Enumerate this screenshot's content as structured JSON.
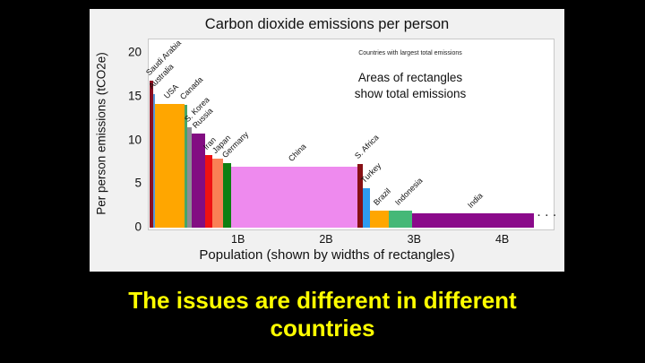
{
  "slide": {
    "background": "#000000",
    "caption": "The issues are different in different\ncountries",
    "caption_color": "#ffff00"
  },
  "chart": {
    "title": "Carbon dioxide emissions per person",
    "note_small": "Countries with largest total emissions",
    "note_large": "Areas of rectangles\nshow total emissions",
    "y_axis_label": "Per person emissions (tCO2e)",
    "x_axis_label": "Population (shown by widths of rectangles)",
    "ellipsis": "· · ·",
    "figure_bg": "#f1f1f1",
    "plot_bg": "#ffffff"
  },
  "chart_data": {
    "type": "bar",
    "variant": "variable-width-bar (Marimekko: width = population, height = per-person emissions, area = total emissions)",
    "title": "Carbon dioxide emissions per person",
    "xlabel": "Population (shown by widths of rectangles)",
    "ylabel": "Per person emissions (tCO2e)",
    "x_tick_labels": [
      "1B",
      "2B",
      "3B",
      "4B"
    ],
    "x_ticks_population_millions": [
      1000,
      2000,
      3000,
      4000
    ],
    "y_ticks": [
      0,
      5,
      10,
      15,
      20
    ],
    "ylim": [
      0,
      21.5
    ],
    "xlim_population_millions": [
      0,
      4600
    ],
    "grid": false,
    "legend": false,
    "annotations": [
      "Countries with largest total emissions",
      "Areas of rectangles show total emissions",
      "· · · (further countries continue off the right)"
    ],
    "countries": [
      {
        "name": "Saudi Arabia",
        "population_millions": 33,
        "per_person_tco2e": 16.8,
        "color": "#8a1022"
      },
      {
        "name": "Australia",
        "population_millions": 25,
        "per_person_tco2e": 15.3,
        "color": "#5596d8"
      },
      {
        "name": "USA",
        "population_millions": 330,
        "per_person_tco2e": 14.2,
        "color": "#ffa600"
      },
      {
        "name": "Canada",
        "population_millions": 37,
        "per_person_tco2e": 14.1,
        "color": "#47a568"
      },
      {
        "name": "S. Korea",
        "population_millions": 51,
        "per_person_tco2e": 11.5,
        "color": "#8f8d95"
      },
      {
        "name": "Russia",
        "population_millions": 148,
        "per_person_tco2e": 10.8,
        "color": "#820d82"
      },
      {
        "name": "Iran",
        "population_millions": 82,
        "per_person_tco2e": 8.3,
        "color": "#ee1113"
      },
      {
        "name": "Japan",
        "population_millions": 128,
        "per_person_tco2e": 7.9,
        "color": "#fa8055"
      },
      {
        "name": "Germany",
        "population_millions": 84,
        "per_person_tco2e": 7.4,
        "color": "#0e7f12"
      },
      {
        "name": "China",
        "population_millions": 1440,
        "per_person_tco2e": 7.0,
        "color": "#ee8aee"
      },
      {
        "name": "S. Africa",
        "population_millions": 58,
        "per_person_tco2e": 7.3,
        "color": "#871015"
      },
      {
        "name": "Turkey",
        "population_millions": 82,
        "per_person_tco2e": 4.5,
        "color": "#2e9bf0"
      },
      {
        "name": "Brazil",
        "population_millions": 212,
        "per_person_tco2e": 1.9,
        "color": "#ffa600"
      },
      {
        "name": "Indonesia",
        "population_millions": 268,
        "per_person_tco2e": 1.9,
        "color": "#45b877"
      },
      {
        "name": "India",
        "population_millions": 1380,
        "per_person_tco2e": 1.6,
        "color": "#8b0a8b"
      }
    ]
  }
}
